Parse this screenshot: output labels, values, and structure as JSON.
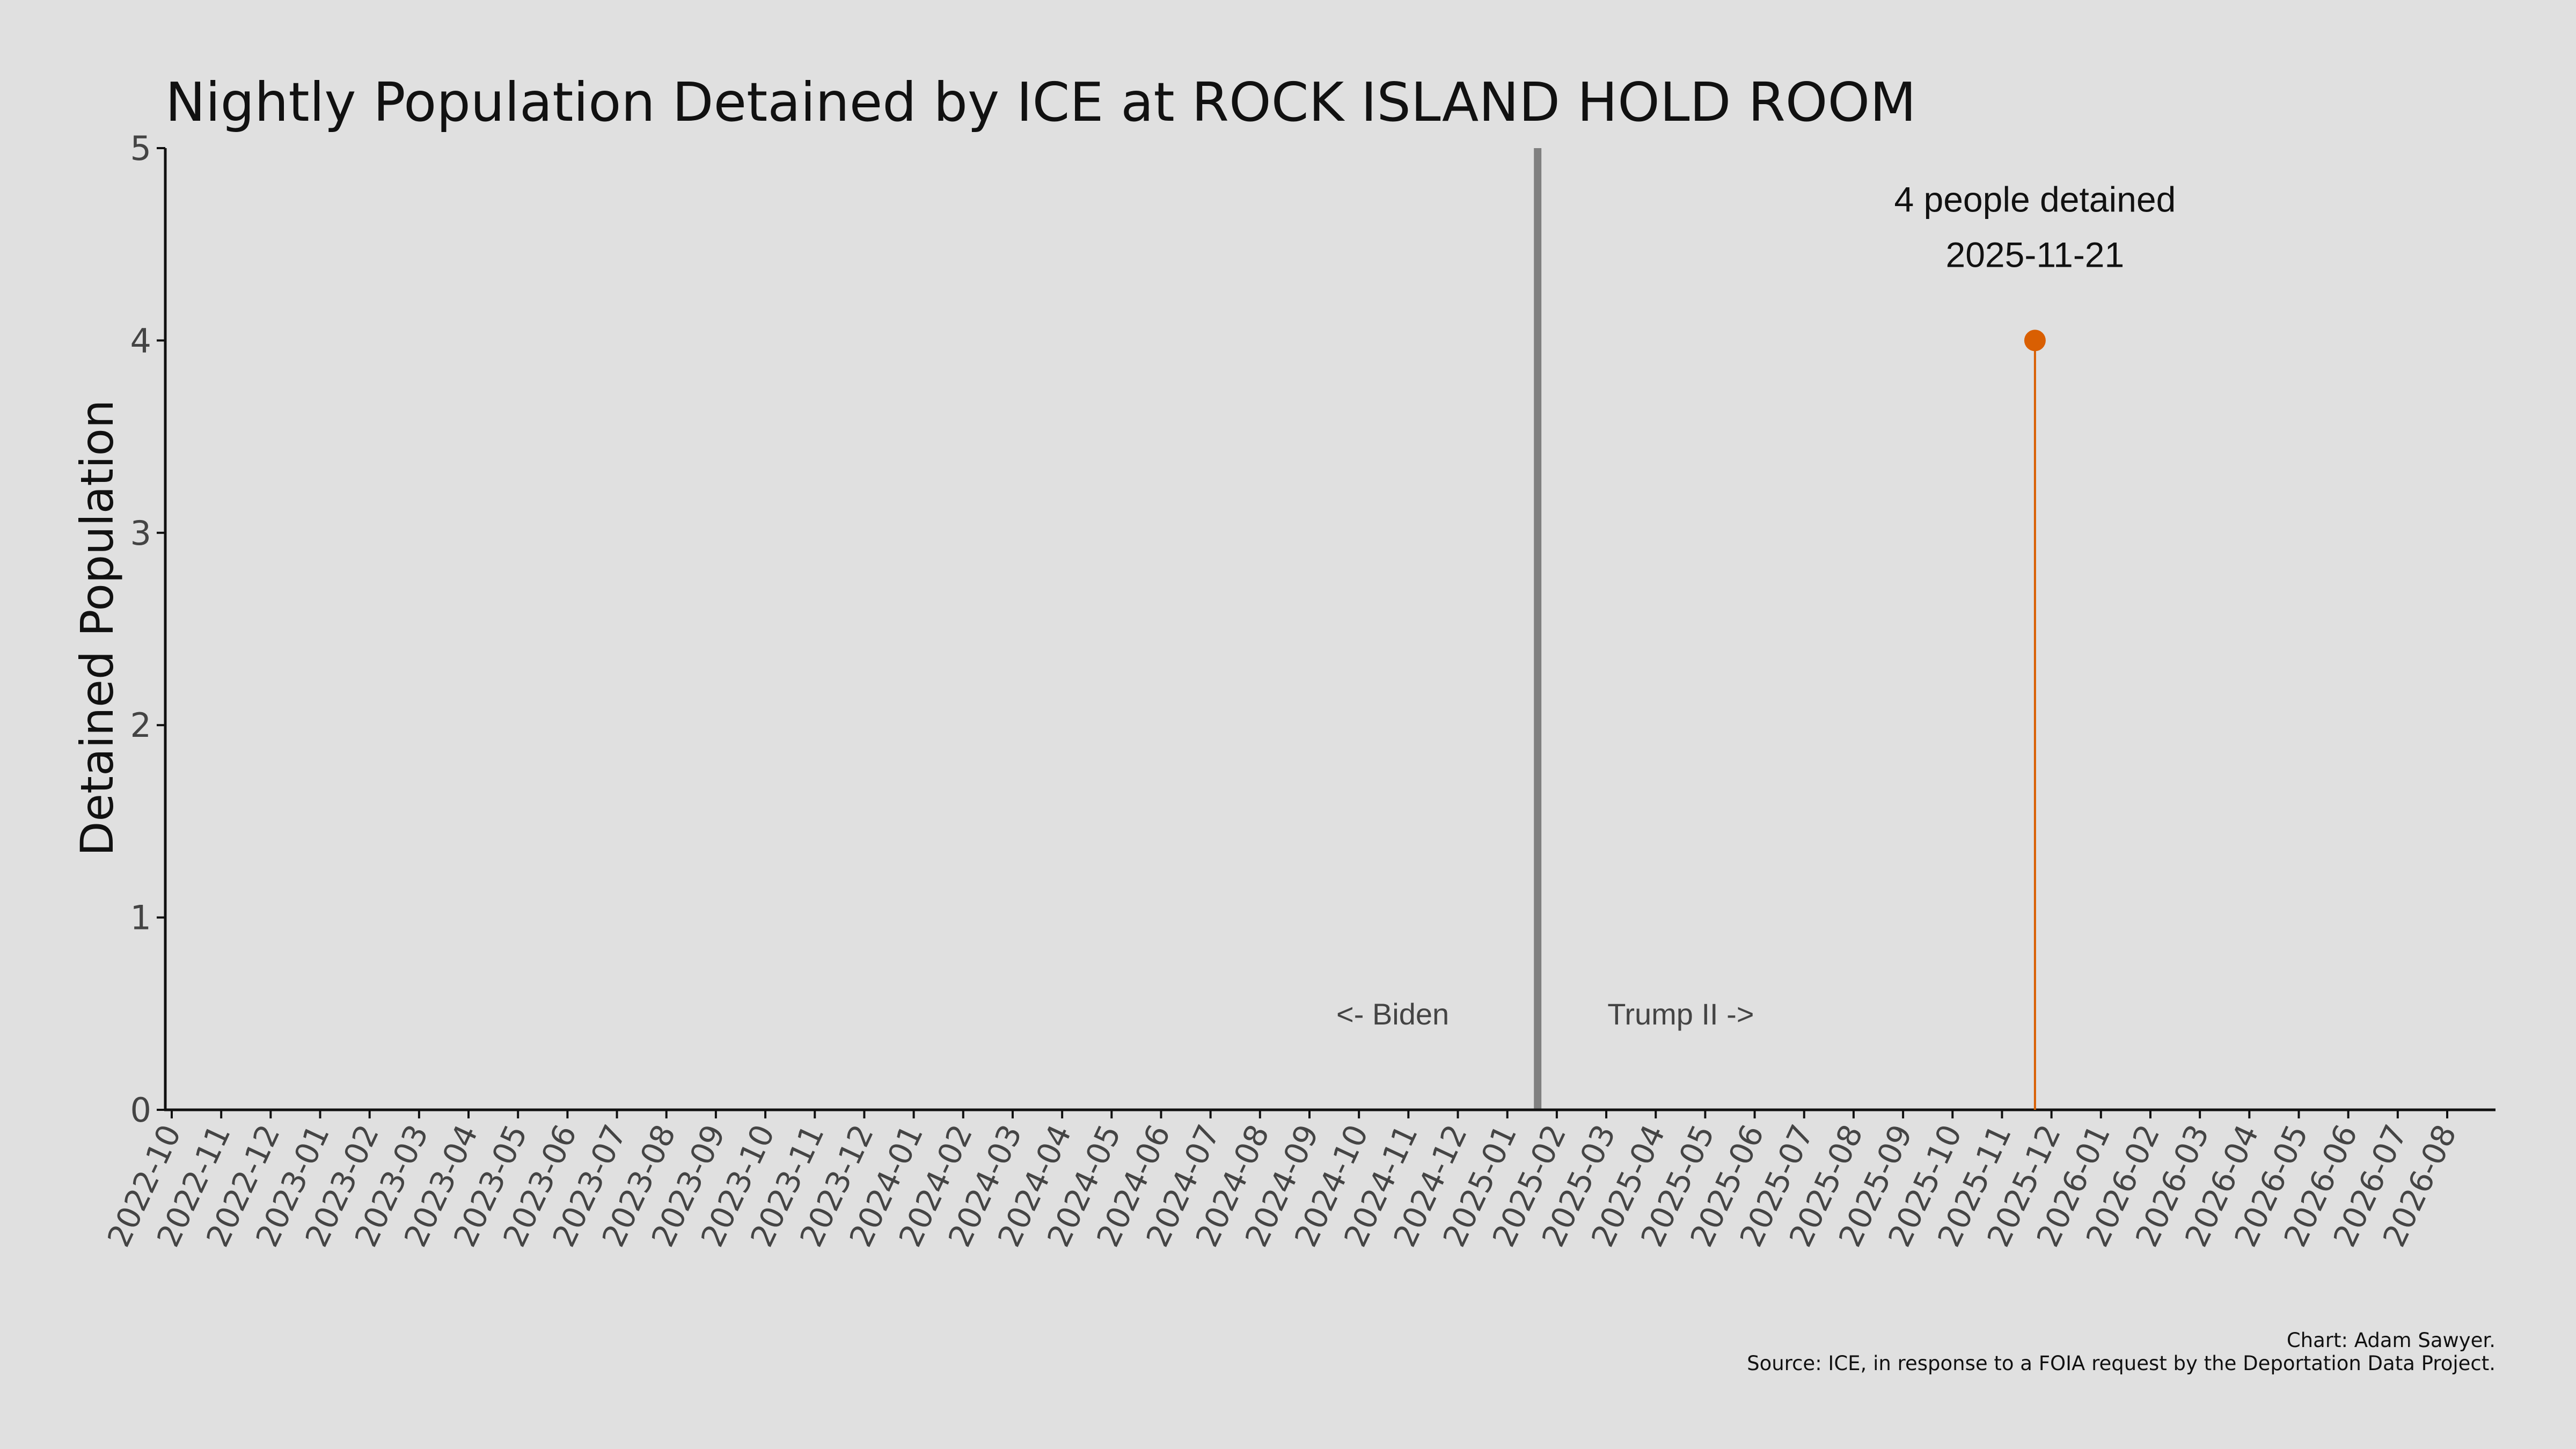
{
  "chart_data": {
    "type": "scatter",
    "title": "Nightly Population Detained by ICE at ROCK ISLAND HOLD ROOM",
    "xlabel": "",
    "ylabel": "Detained Population",
    "x_axis_type": "date",
    "xlim": [
      "2022-10-01",
      "2026-08-31"
    ],
    "ylim": [
      0,
      5
    ],
    "yticks": [
      0,
      1,
      2,
      3,
      4,
      5
    ],
    "xticks": [
      "2022-10",
      "2022-11",
      "2022-12",
      "2023-01",
      "2023-02",
      "2023-03",
      "2023-04",
      "2023-05",
      "2023-06",
      "2023-07",
      "2023-08",
      "2023-09",
      "2023-10",
      "2023-11",
      "2023-12",
      "2024-01",
      "2024-02",
      "2024-03",
      "2024-04",
      "2024-05",
      "2024-06",
      "2024-07",
      "2024-08",
      "2024-09",
      "2024-10",
      "2024-11",
      "2024-12",
      "2025-01",
      "2025-02",
      "2025-03",
      "2025-04",
      "2025-05",
      "2025-06",
      "2025-07",
      "2025-08",
      "2025-09",
      "2025-10",
      "2025-11",
      "2025-12",
      "2026-01",
      "2026-02",
      "2026-03",
      "2026-04",
      "2026-05",
      "2026-06",
      "2026-07",
      "2026-08"
    ],
    "grid": false,
    "series": [
      {
        "points": [
          {
            "x": "2025-11-21",
            "y": 4
          }
        ]
      }
    ],
    "reference_lines": [
      {
        "x": "2025-01-20",
        "color": "#808080"
      }
    ],
    "annotations": {
      "left_era": "<- Biden",
      "right_era": "Trump II ->",
      "callout_line1": "4 people detained",
      "callout_line2": "2025-11-21"
    },
    "colors": {
      "point": "#d95f02",
      "background": "#e0e0e0",
      "reference": "#808080"
    },
    "credit_line1": "Chart: Adam Sawyer.",
    "credit_line2": "Source: ICE, in response to a FOIA request by the Deportation Data Project."
  }
}
